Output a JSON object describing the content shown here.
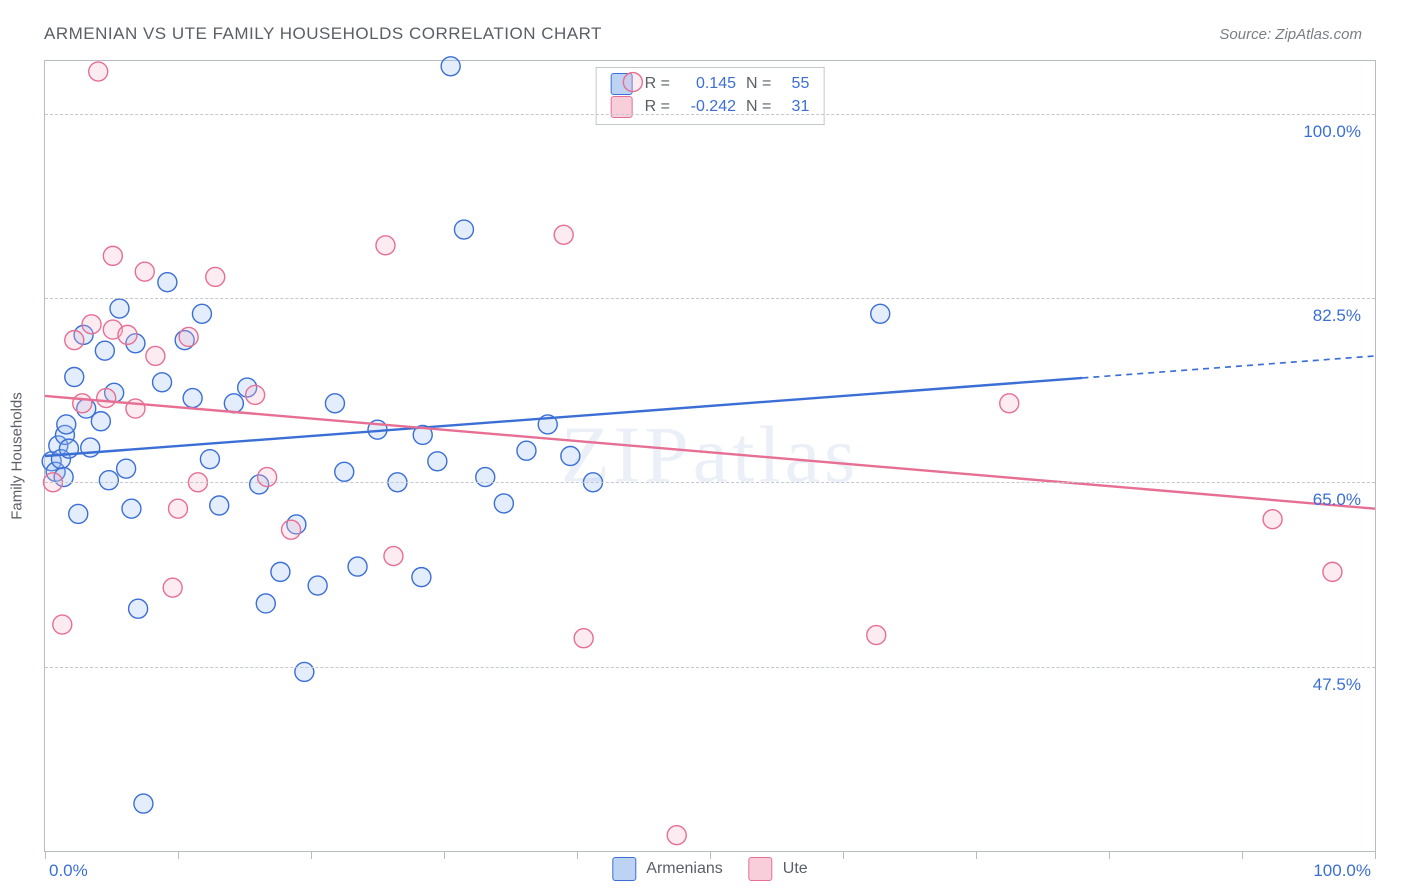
{
  "title": "ARMENIAN VS UTE FAMILY HOUSEHOLDS CORRELATION CHART",
  "source_prefix": "Source: ",
  "source_name": "ZipAtlas.com",
  "watermark": "ZIPatlas",
  "y_axis_label": "Family Households",
  "chart": {
    "type": "scatter",
    "background_color": "#ffffff",
    "border_color": "#b8bcc2",
    "grid_color": "#c4c8ce",
    "grid_dash": "4 4",
    "xlim": [
      0,
      100
    ],
    "ylim": [
      30,
      105
    ],
    "x_ticks": [
      0,
      10,
      20,
      30,
      40,
      50,
      60,
      70,
      80,
      90,
      100
    ],
    "x_tick_labels": {
      "0": "0.0%",
      "100": "100.0%"
    },
    "y_ticks": [
      47.5,
      65.0,
      82.5,
      100.0
    ],
    "y_tick_labels": [
      "47.5%",
      "65.0%",
      "82.5%",
      "100.0%"
    ],
    "marker_radius": 9.5,
    "marker_stroke_width": 1.4,
    "marker_fill_opacity": 0.28,
    "trend_line_width": 2.4,
    "label_color": "#3b6fd6",
    "text_color": "#5a5f66",
    "label_fontsize": 17,
    "axis_fontsize": 15
  },
  "series": [
    {
      "key": "armenians",
      "legend_label": "Armenians",
      "color_stroke": "#3b6fd6",
      "color_fill": "#9dbdf0",
      "swatch_fill": "#bcd3f4",
      "swatch_border": "#3b6fd6",
      "R": "0.145",
      "N": "55",
      "trend": {
        "x1": 0,
        "y1": 67.5,
        "x2": 100,
        "y2": 77.0,
        "solid_until_x": 78
      },
      "points": [
        [
          0.5,
          67
        ],
        [
          0.8,
          66
        ],
        [
          1.0,
          68.5
        ],
        [
          1.2,
          67.2
        ],
        [
          1.5,
          69.5
        ],
        [
          1.4,
          65.5
        ],
        [
          1.6,
          70.5
        ],
        [
          1.8,
          68.2
        ],
        [
          2.2,
          75
        ],
        [
          2.5,
          62
        ],
        [
          2.9,
          79
        ],
        [
          3.1,
          72
        ],
        [
          3.4,
          68.3
        ],
        [
          4.2,
          70.8
        ],
        [
          4.5,
          77.5
        ],
        [
          4.8,
          65.2
        ],
        [
          5.2,
          73.5
        ],
        [
          5.6,
          81.5
        ],
        [
          6.1,
          66.3
        ],
        [
          6.5,
          62.5
        ],
        [
          6.8,
          78.2
        ],
        [
          7.0,
          53
        ],
        [
          7.4,
          34.5
        ],
        [
          8.8,
          74.5
        ],
        [
          9.2,
          84
        ],
        [
          10.5,
          78.5
        ],
        [
          11.1,
          73
        ],
        [
          11.8,
          81
        ],
        [
          12.4,
          67.2
        ],
        [
          13.1,
          62.8
        ],
        [
          14.2,
          72.5
        ],
        [
          15.2,
          74
        ],
        [
          16.1,
          64.8
        ],
        [
          16.6,
          53.5
        ],
        [
          17.7,
          56.5
        ],
        [
          18.9,
          61
        ],
        [
          19.5,
          47
        ],
        [
          20.5,
          55.2
        ],
        [
          21.8,
          72.5
        ],
        [
          22.5,
          66
        ],
        [
          23.5,
          57
        ],
        [
          25.0,
          70
        ],
        [
          26.5,
          65
        ],
        [
          28.3,
          56
        ],
        [
          28.4,
          69.5
        ],
        [
          29.5,
          67
        ],
        [
          30.5,
          104.5
        ],
        [
          31.5,
          89
        ],
        [
          33.1,
          65.5
        ],
        [
          34.5,
          63
        ],
        [
          36.2,
          68
        ],
        [
          37.8,
          70.5
        ],
        [
          39.5,
          67.5
        ],
        [
          41.2,
          65
        ],
        [
          62.8,
          81
        ]
      ]
    },
    {
      "key": "ute",
      "legend_label": "Ute",
      "color_stroke": "#e66f93",
      "color_fill": "#f6b9cc",
      "swatch_fill": "#f8cedb",
      "swatch_border": "#e66f93",
      "R": "-0.242",
      "N": "31",
      "trend": {
        "x1": 0,
        "y1": 73.2,
        "x2": 100,
        "y2": 62.5,
        "solid_until_x": 100
      },
      "points": [
        [
          0.6,
          65
        ],
        [
          1.3,
          51.5
        ],
        [
          2.2,
          78.5
        ],
        [
          2.8,
          72.5
        ],
        [
          3.5,
          80
        ],
        [
          4.0,
          104
        ],
        [
          4.6,
          73
        ],
        [
          5.1,
          86.5
        ],
        [
          5.1,
          79.5
        ],
        [
          6.2,
          79
        ],
        [
          6.8,
          72
        ],
        [
          7.5,
          85
        ],
        [
          8.3,
          77
        ],
        [
          9.6,
          55
        ],
        [
          10.0,
          62.5
        ],
        [
          10.8,
          78.8
        ],
        [
          11.5,
          65
        ],
        [
          12.8,
          84.5
        ],
        [
          15.8,
          73.3
        ],
        [
          16.7,
          65.5
        ],
        [
          18.5,
          60.5
        ],
        [
          25.6,
          87.5
        ],
        [
          26.2,
          58
        ],
        [
          39.0,
          88.5
        ],
        [
          40.5,
          50.2
        ],
        [
          44.2,
          103
        ],
        [
          47.5,
          31.5
        ],
        [
          62.5,
          50.5
        ],
        [
          72.5,
          72.5
        ],
        [
          92.3,
          61.5
        ],
        [
          96.8,
          56.5
        ]
      ]
    }
  ],
  "stats_labels": {
    "R": "R =",
    "N": "N ="
  }
}
